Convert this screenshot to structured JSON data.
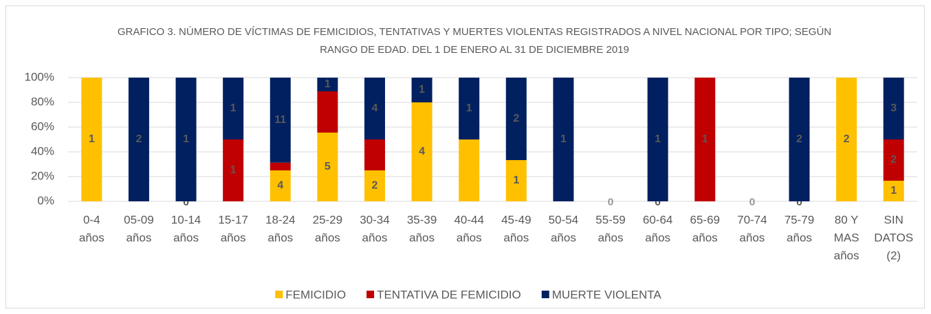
{
  "chart_data": {
    "type": "bar",
    "stacked": "percent",
    "title": "GRAFICO 3. NÚMERO DE VÍCTIMAS DE FEMICIDIOS, TENTATIVAS Y MUERTES VIOLENTAS REGISTRADOS A NIVEL NACIONAL POR TIPO; SEGÚN RANGO DE EDAD. DEL 1  DE ENERO AL 31 DE DICIEMBRE  2019",
    "categories": [
      [
        "0-4",
        "años"
      ],
      [
        "05-09",
        "años"
      ],
      [
        "10-14",
        "años"
      ],
      [
        "15-17",
        "años"
      ],
      [
        "18-24",
        "años"
      ],
      [
        "25-29",
        "años"
      ],
      [
        "30-34",
        "años"
      ],
      [
        "35-39",
        "años"
      ],
      [
        "40-44",
        "años"
      ],
      [
        "45-49",
        "años"
      ],
      [
        "50-54",
        "años"
      ],
      [
        "55-59",
        "años"
      ],
      [
        "60-64",
        "años"
      ],
      [
        "65-69",
        "años"
      ],
      [
        "70-74",
        "años"
      ],
      [
        "75-79",
        "años"
      ],
      [
        "80 Y",
        "MAS",
        "años"
      ],
      [
        "SIN",
        "DATOS",
        "(2)"
      ]
    ],
    "series": [
      {
        "name": "FEMICIDIO",
        "color": "#FFC000",
        "values": [
          1,
          0,
          0,
          0,
          4,
          5,
          2,
          4,
          1,
          1,
          0,
          0,
          0,
          0,
          0,
          0,
          2,
          1
        ],
        "value_labels": [
          "1",
          null,
          "0",
          null,
          "4",
          "5",
          "2",
          "4",
          null,
          "1",
          null,
          "0",
          "0",
          null,
          "0",
          "0",
          "2",
          "1"
        ]
      },
      {
        "name": "TENTATIVA DE FEMICIDIO",
        "color": "#C00000",
        "values": [
          0,
          0,
          0,
          1,
          1,
          3,
          2,
          0,
          0,
          0,
          0,
          0,
          0,
          1,
          0,
          0,
          0,
          2
        ],
        "value_labels": [
          null,
          null,
          null,
          "1",
          null,
          null,
          null,
          null,
          null,
          null,
          null,
          null,
          null,
          "1",
          null,
          null,
          null,
          "2"
        ]
      },
      {
        "name": "MUERTE VIOLENTA",
        "color": "#002060",
        "values": [
          0,
          2,
          1,
          1,
          11,
          1,
          4,
          1,
          1,
          2,
          1,
          0,
          1,
          0,
          0,
          2,
          0,
          3
        ],
        "value_labels": [
          null,
          "2",
          "1",
          "1",
          "11",
          "1",
          "4",
          "1",
          "1",
          "2",
          "1",
          null,
          "1",
          null,
          null,
          "2",
          null,
          "3"
        ]
      }
    ],
    "ylim": [
      0,
      100
    ],
    "yticks": [
      {
        "value": 0,
        "label": "0%"
      },
      {
        "value": 20,
        "label": "20%"
      },
      {
        "value": 40,
        "label": "40%"
      },
      {
        "value": 60,
        "label": "60%"
      },
      {
        "value": 80,
        "label": "80%"
      },
      {
        "value": 100,
        "label": "100%"
      }
    ],
    "grid": true,
    "legend": "bottom"
  }
}
